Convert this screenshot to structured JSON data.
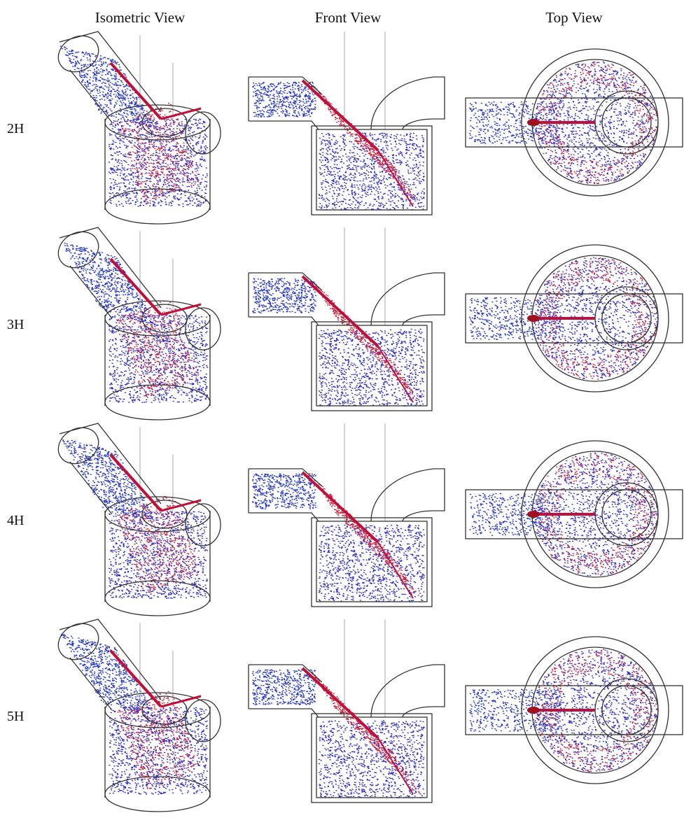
{
  "headers": [
    "Isometric View",
    "Front View",
    "Top View"
  ],
  "rows": [
    "2H",
    "3H",
    "4H",
    "5H"
  ]
}
